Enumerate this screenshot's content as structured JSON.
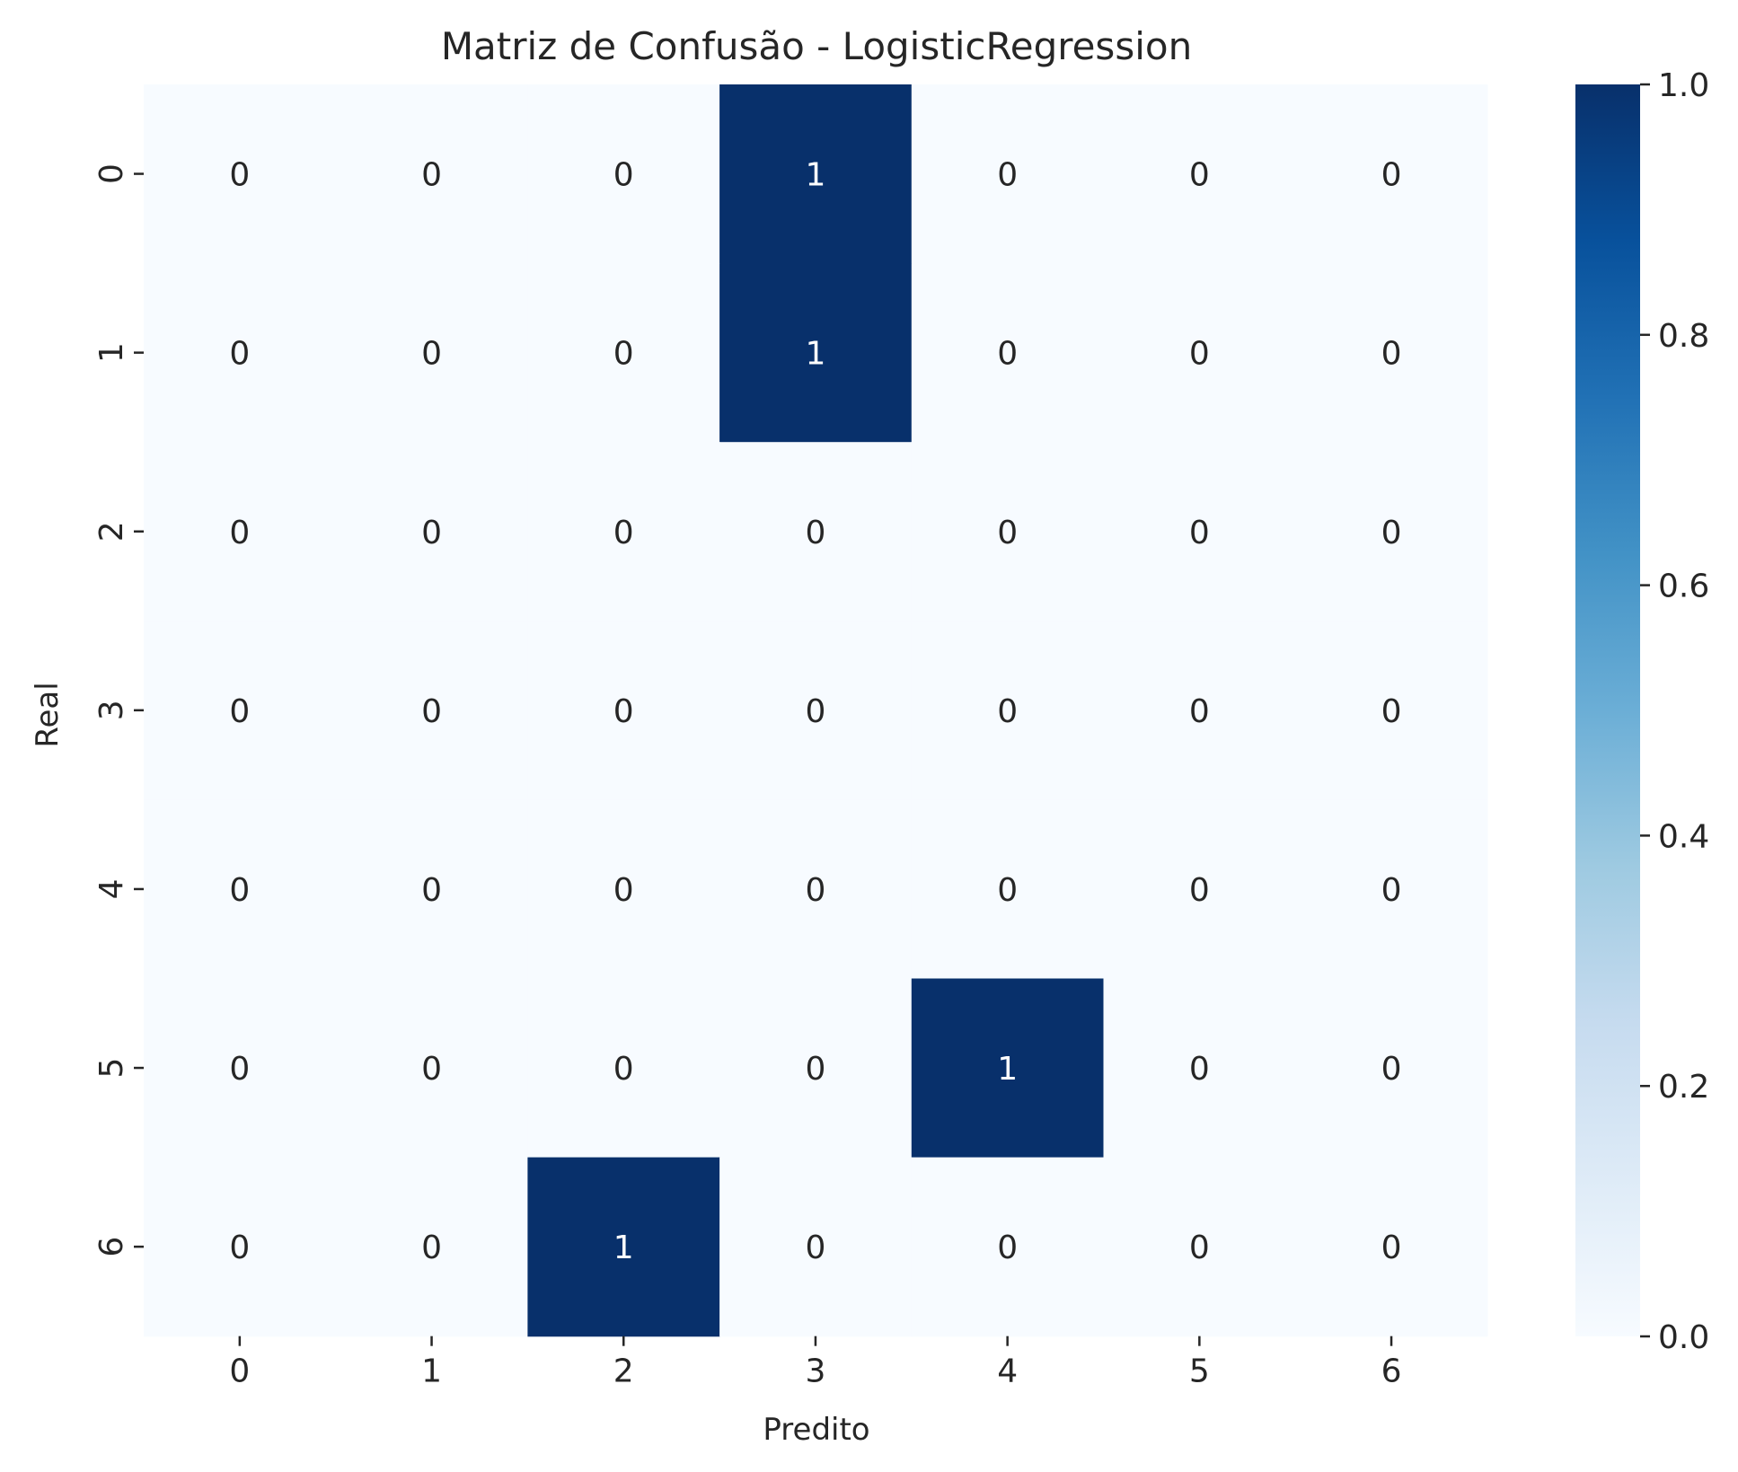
{
  "chart_data": {
    "type": "heatmap",
    "title": "Matriz de Confusão - LogisticRegression",
    "xlabel": "Predito",
    "ylabel": "Real",
    "x_categories": [
      "0",
      "1",
      "2",
      "3",
      "4",
      "5",
      "6"
    ],
    "y_categories": [
      "0",
      "1",
      "2",
      "3",
      "4",
      "5",
      "6"
    ],
    "values": [
      [
        0,
        0,
        0,
        1,
        0,
        0,
        0
      ],
      [
        0,
        0,
        0,
        1,
        0,
        0,
        0
      ],
      [
        0,
        0,
        0,
        0,
        0,
        0,
        0
      ],
      [
        0,
        0,
        0,
        0,
        0,
        0,
        0
      ],
      [
        0,
        0,
        0,
        0,
        0,
        0,
        0
      ],
      [
        0,
        0,
        0,
        0,
        1,
        0,
        0
      ],
      [
        0,
        0,
        1,
        0,
        0,
        0,
        0
      ]
    ],
    "colorbar": {
      "range": [
        0.0,
        1.0
      ],
      "ticks": [
        "0.0",
        "0.2",
        "0.4",
        "0.6",
        "0.8",
        "1.0"
      ],
      "colormap": "Blues",
      "low_color": "#f7fbff",
      "high_color": "#08306b"
    }
  }
}
